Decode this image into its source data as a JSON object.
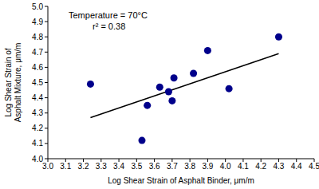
{
  "chart_data": {
    "type": "scatter",
    "x_label": "Log Shear Strain of Asphalt Binder, μm/m",
    "y_label": "Log Shear Strain of Asphalt Mixture, μm/m",
    "annotations": [
      "Temperature = 70°C",
      "r² = 0.38"
    ],
    "x": [
      3.24,
      3.53,
      3.56,
      3.63,
      3.68,
      3.7,
      3.71,
      3.82,
      3.9,
      4.02,
      4.3
    ],
    "values": [
      4.49,
      4.12,
      4.35,
      4.47,
      4.44,
      4.38,
      4.53,
      4.56,
      4.71,
      4.46,
      4.8
    ],
    "color": "#00008b",
    "marker": "circle",
    "trendline": {
      "x": [
        3.24,
        4.3
      ],
      "values": [
        4.27,
        4.69
      ],
      "color": "#000000",
      "line_style": "solid"
    },
    "xlim": [
      3.0,
      4.5
    ],
    "xticks": [
      {
        "value": 3.0,
        "label": "3.0"
      },
      3.1,
      3.2,
      3.3,
      3.4,
      3.5,
      3.6,
      3.7,
      3.8,
      3.9,
      {
        "value": 4.0,
        "label": "4.0"
      },
      4.1,
      4.2,
      4.3,
      4.4,
      4.5
    ],
    "ylim": [
      4.0,
      5.0
    ],
    "yticks": [
      {
        "value": 4.0,
        "label": "4.0"
      },
      4.1,
      4.2,
      4.3,
      4.4,
      4.5,
      4.6,
      4.7,
      4.8,
      4.9,
      {
        "value": 5.0,
        "label": "5.0"
      }
    ],
    "grid": false
  }
}
